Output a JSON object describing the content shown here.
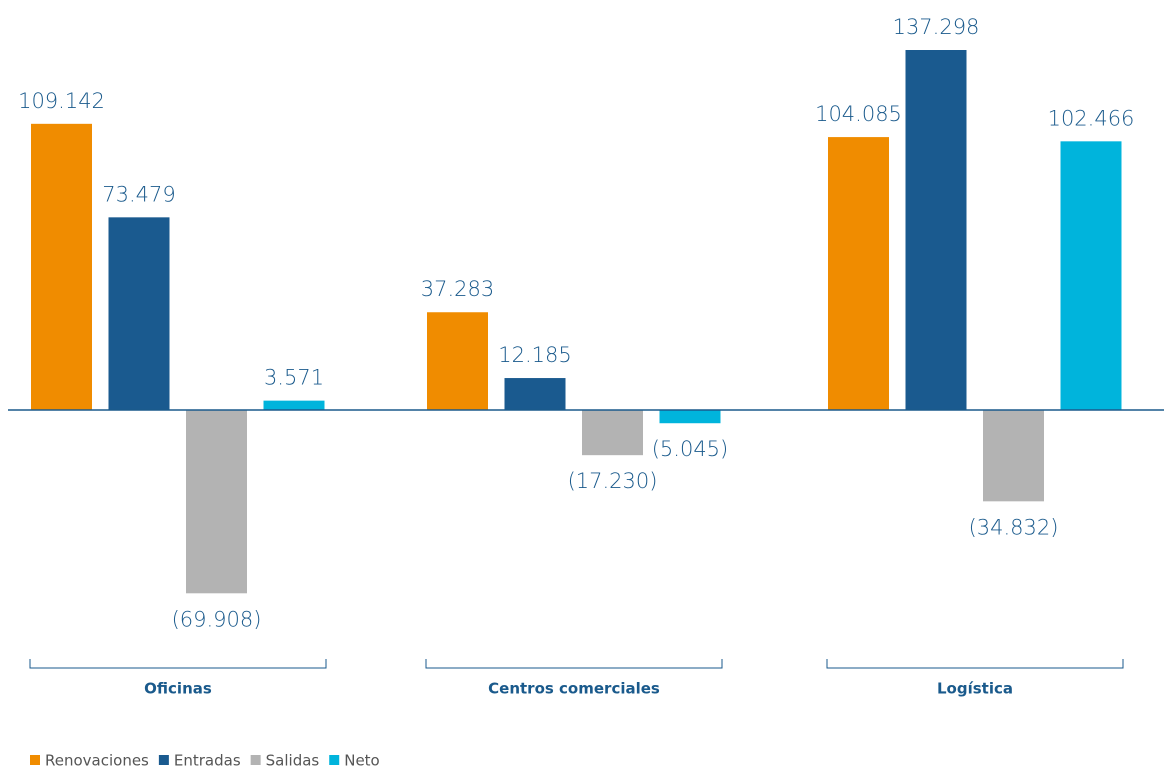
{
  "chart_data": {
    "type": "bar",
    "categories": [
      "Oficinas",
      "Centros comerciales",
      "Logística"
    ],
    "series": [
      {
        "name": "Renovaciones",
        "color": "#f08c00",
        "values": [
          109142,
          37283,
          104085
        ],
        "value_labels": [
          "109.142",
          "37.283",
          "104.085"
        ]
      },
      {
        "name": "Entradas",
        "color": "#1a5a8f",
        "values": [
          73479,
          12185,
          137298
        ],
        "value_labels": [
          "73.479",
          "12.185",
          "137.298"
        ]
      },
      {
        "name": "Salidas",
        "color": "#b3b3b3",
        "values": [
          -69908,
          -17230,
          -34832
        ],
        "value_labels": [
          "(69.908)",
          "(17.230)",
          "(34.832)"
        ]
      },
      {
        "name": "Neto",
        "color": "#00b4dc",
        "values": [
          3571,
          -5045,
          102466
        ],
        "value_labels": [
          "3.571",
          "(5.045)",
          "102.466"
        ]
      }
    ],
    "legend": "bottom-left"
  }
}
